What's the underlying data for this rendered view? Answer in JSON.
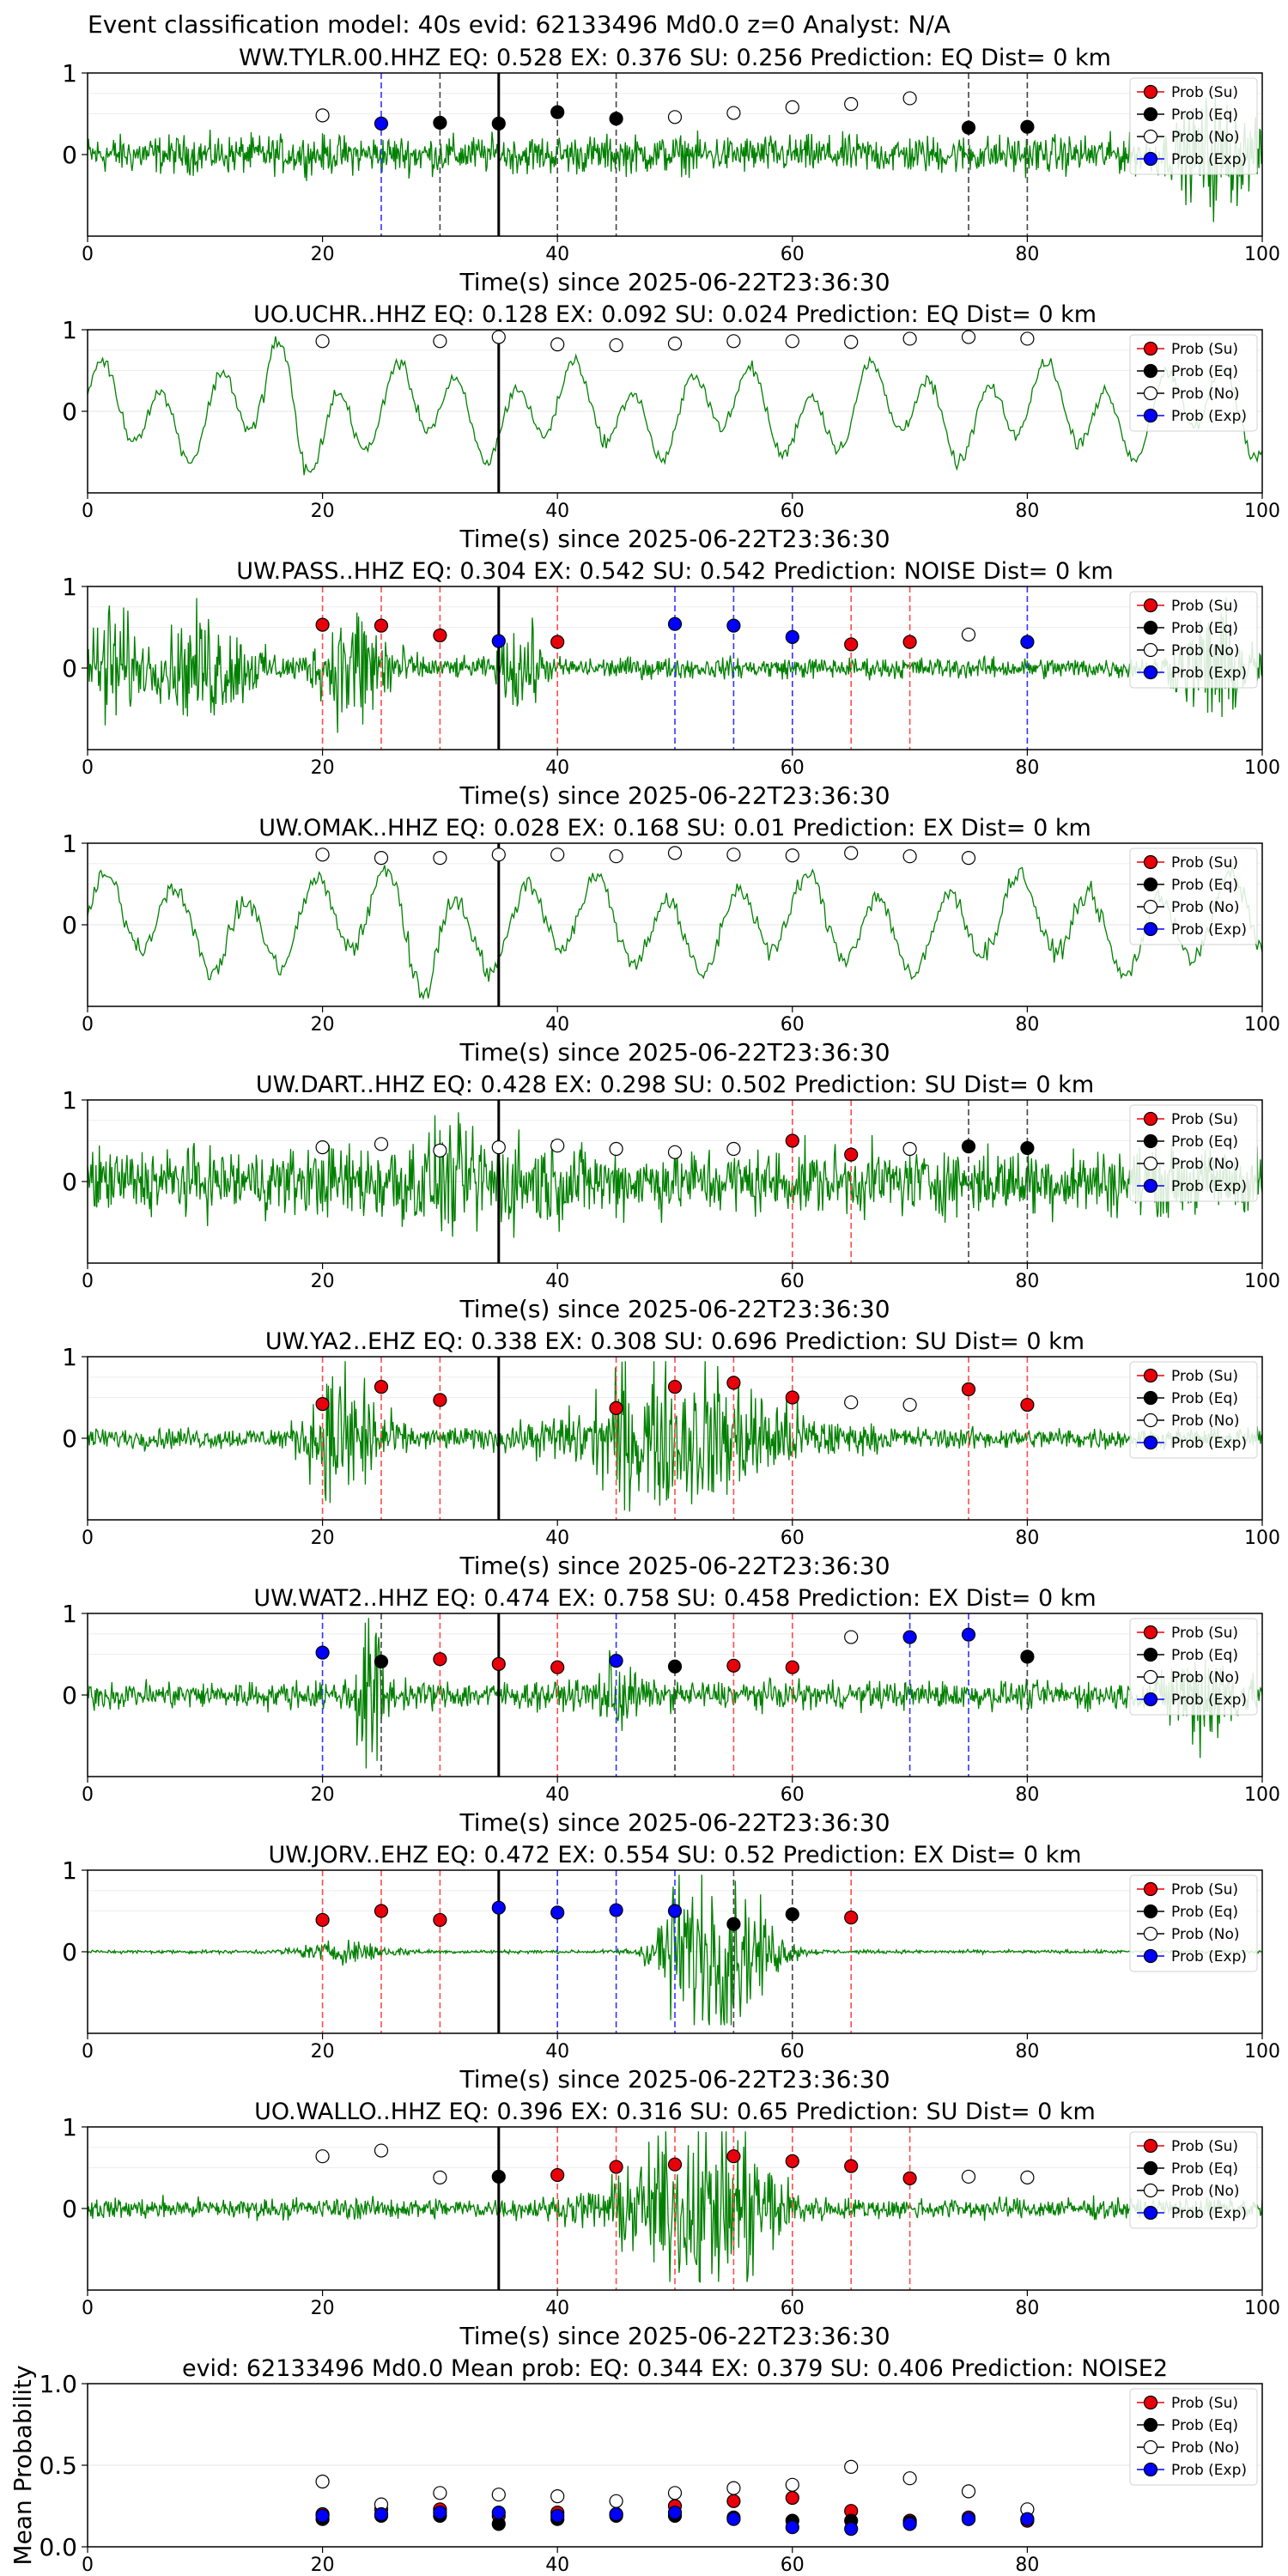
{
  "figure": {
    "suptitle": "Event classification model: 40s evid: 62133496 Md0.0 z=0 Analyst: N/A",
    "x_axis_label": "Time(s) since 2025-06-22T23:36:30",
    "y_axis_label_mean": "Mean Probability",
    "legend_labels": [
      "Prob (Su)",
      "Prob (Eq)",
      "Prob (No)",
      "Prob (Exp)"
    ],
    "colors": {
      "su": "#e8000b",
      "eq": "#000000",
      "no": "#ffffff",
      "exp": "#0000ff",
      "trace": "#008000",
      "su_line": "#ff4d4d",
      "eq_line": "#444444",
      "exp_line": "#3333ff"
    }
  },
  "chart_data": [
    {
      "type": "scatter",
      "title": "WW.TYLR.00.HHZ   EQ: 0.528  EX: 0.376  SU: 0.256   Prediction: EQ    Dist= 0 km",
      "xlim": [
        0,
        100
      ],
      "ylim": [
        -1,
        1
      ],
      "x_ticks": [
        0,
        20,
        40,
        60,
        80,
        100
      ],
      "y_ticks": [
        0,
        1
      ],
      "waveform": "noise",
      "origin_line": 35,
      "points": [
        {
          "x": 20,
          "cls": "no",
          "y": 0.48
        },
        {
          "x": 25,
          "cls": "exp",
          "y": 0.38
        },
        {
          "x": 30,
          "cls": "eq",
          "y": 0.39
        },
        {
          "x": 35,
          "cls": "eq",
          "y": 0.38
        },
        {
          "x": 40,
          "cls": "eq",
          "y": 0.52
        },
        {
          "x": 45,
          "cls": "eq",
          "y": 0.44
        },
        {
          "x": 50,
          "cls": "no",
          "y": 0.46
        },
        {
          "x": 55,
          "cls": "no",
          "y": 0.51
        },
        {
          "x": 60,
          "cls": "no",
          "y": 0.58
        },
        {
          "x": 65,
          "cls": "no",
          "y": 0.62
        },
        {
          "x": 70,
          "cls": "no",
          "y": 0.69
        },
        {
          "x": 75,
          "cls": "eq",
          "y": 0.33
        },
        {
          "x": 80,
          "cls": "eq",
          "y": 0.34
        }
      ]
    },
    {
      "type": "scatter",
      "title": "UO.UCHR..HHZ   EQ: 0.128  EX: 0.092  SU: 0.024   Prediction: EQ    Dist= 0 km",
      "xlim": [
        0,
        100
      ],
      "ylim": [
        -1,
        1
      ],
      "x_ticks": [
        0,
        20,
        40,
        60,
        80,
        100
      ],
      "y_ticks": [
        0,
        1
      ],
      "waveform": "smooth",
      "origin_line": 35,
      "points": [
        {
          "x": 20,
          "cls": "no",
          "y": 0.86
        },
        {
          "x": 30,
          "cls": "no",
          "y": 0.86
        },
        {
          "x": 35,
          "cls": "no",
          "y": 0.91
        },
        {
          "x": 40,
          "cls": "no",
          "y": 0.82
        },
        {
          "x": 45,
          "cls": "no",
          "y": 0.81
        },
        {
          "x": 50,
          "cls": "no",
          "y": 0.83
        },
        {
          "x": 55,
          "cls": "no",
          "y": 0.86
        },
        {
          "x": 60,
          "cls": "no",
          "y": 0.86
        },
        {
          "x": 65,
          "cls": "no",
          "y": 0.85
        },
        {
          "x": 70,
          "cls": "no",
          "y": 0.89
        },
        {
          "x": 75,
          "cls": "no",
          "y": 0.91
        },
        {
          "x": 80,
          "cls": "no",
          "y": 0.89
        }
      ]
    },
    {
      "type": "scatter",
      "title": "UW.PASS..HHZ   EQ: 0.304  EX: 0.542  SU: 0.542   Prediction: NOISE    Dist= 0 km",
      "xlim": [
        0,
        100
      ],
      "ylim": [
        -1,
        1
      ],
      "x_ticks": [
        0,
        20,
        40,
        60,
        80,
        100
      ],
      "y_ticks": [
        0,
        1
      ],
      "waveform": "bursty",
      "origin_line": 35,
      "points": [
        {
          "x": 20,
          "cls": "su",
          "y": 0.53
        },
        {
          "x": 25,
          "cls": "su",
          "y": 0.52
        },
        {
          "x": 30,
          "cls": "su",
          "y": 0.4
        },
        {
          "x": 35,
          "cls": "exp",
          "y": 0.33
        },
        {
          "x": 40,
          "cls": "su",
          "y": 0.32
        },
        {
          "x": 50,
          "cls": "exp",
          "y": 0.54
        },
        {
          "x": 55,
          "cls": "exp",
          "y": 0.52
        },
        {
          "x": 60,
          "cls": "exp",
          "y": 0.38
        },
        {
          "x": 65,
          "cls": "su",
          "y": 0.29
        },
        {
          "x": 70,
          "cls": "su",
          "y": 0.32
        },
        {
          "x": 75,
          "cls": "no",
          "y": 0.41
        },
        {
          "x": 80,
          "cls": "exp",
          "y": 0.32
        }
      ]
    },
    {
      "type": "scatter",
      "title": "UW.OMAK..HHZ   EQ: 0.028  EX: 0.168  SU: 0.01   Prediction: EX    Dist= 0 km",
      "xlim": [
        0,
        100
      ],
      "ylim": [
        -1,
        1
      ],
      "x_ticks": [
        0,
        20,
        40,
        60,
        80,
        100
      ],
      "y_ticks": [
        0,
        1
      ],
      "waveform": "smooth2",
      "origin_line": 35,
      "points": [
        {
          "x": 20,
          "cls": "no",
          "y": 0.86
        },
        {
          "x": 25,
          "cls": "no",
          "y": 0.82
        },
        {
          "x": 30,
          "cls": "no",
          "y": 0.82
        },
        {
          "x": 35,
          "cls": "no",
          "y": 0.86
        },
        {
          "x": 40,
          "cls": "no",
          "y": 0.86
        },
        {
          "x": 45,
          "cls": "no",
          "y": 0.84
        },
        {
          "x": 50,
          "cls": "no",
          "y": 0.88
        },
        {
          "x": 55,
          "cls": "no",
          "y": 0.86
        },
        {
          "x": 60,
          "cls": "no",
          "y": 0.85
        },
        {
          "x": 65,
          "cls": "no",
          "y": 0.88
        },
        {
          "x": 70,
          "cls": "no",
          "y": 0.84
        },
        {
          "x": 75,
          "cls": "no",
          "y": 0.82
        }
      ]
    },
    {
      "type": "scatter",
      "title": "UW.DART..HHZ   EQ: 0.428  EX: 0.298  SU: 0.502   Prediction: SU    Dist= 0 km",
      "xlim": [
        0,
        100
      ],
      "ylim": [
        -1,
        1
      ],
      "x_ticks": [
        0,
        20,
        40,
        60,
        80,
        100
      ],
      "y_ticks": [
        0,
        1
      ],
      "waveform": "noisy",
      "origin_line": 35,
      "points": [
        {
          "x": 20,
          "cls": "no",
          "y": 0.42
        },
        {
          "x": 25,
          "cls": "no",
          "y": 0.46
        },
        {
          "x": 30,
          "cls": "no",
          "y": 0.38
        },
        {
          "x": 35,
          "cls": "no",
          "y": 0.42
        },
        {
          "x": 40,
          "cls": "no",
          "y": 0.44
        },
        {
          "x": 45,
          "cls": "no",
          "y": 0.4
        },
        {
          "x": 50,
          "cls": "no",
          "y": 0.36
        },
        {
          "x": 55,
          "cls": "no",
          "y": 0.4
        },
        {
          "x": 60,
          "cls": "su",
          "y": 0.5
        },
        {
          "x": 65,
          "cls": "su",
          "y": 0.33
        },
        {
          "x": 70,
          "cls": "no",
          "y": 0.4
        },
        {
          "x": 75,
          "cls": "eq",
          "y": 0.43
        },
        {
          "x": 80,
          "cls": "eq",
          "y": 0.41
        }
      ]
    },
    {
      "type": "scatter",
      "title": "UW.YA2..EHZ   EQ: 0.338  EX: 0.308  SU: 0.696   Prediction: SU    Dist= 0 km",
      "xlim": [
        0,
        100
      ],
      "ylim": [
        -1,
        1
      ],
      "x_ticks": [
        0,
        20,
        40,
        60,
        80,
        100
      ],
      "y_ticks": [
        0,
        1
      ],
      "waveform": "twobursts",
      "origin_line": 35,
      "points": [
        {
          "x": 20,
          "cls": "su",
          "y": 0.42
        },
        {
          "x": 25,
          "cls": "su",
          "y": 0.63
        },
        {
          "x": 30,
          "cls": "su",
          "y": 0.47
        },
        {
          "x": 45,
          "cls": "su",
          "y": 0.37
        },
        {
          "x": 50,
          "cls": "su",
          "y": 0.63
        },
        {
          "x": 55,
          "cls": "su",
          "y": 0.68
        },
        {
          "x": 60,
          "cls": "su",
          "y": 0.5
        },
        {
          "x": 65,
          "cls": "no",
          "y": 0.44
        },
        {
          "x": 70,
          "cls": "no",
          "y": 0.41
        },
        {
          "x": 75,
          "cls": "su",
          "y": 0.6
        },
        {
          "x": 80,
          "cls": "su",
          "y": 0.41
        }
      ]
    },
    {
      "type": "scatter",
      "title": "UW.WAT2..HHZ   EQ: 0.474  EX: 0.758  SU: 0.458   Prediction: EX    Dist= 0 km",
      "xlim": [
        0,
        100
      ],
      "ylim": [
        -1,
        1
      ],
      "x_ticks": [
        0,
        20,
        40,
        60,
        80,
        100
      ],
      "y_ticks": [
        0,
        1
      ],
      "waveform": "spiky",
      "origin_line": 35,
      "points": [
        {
          "x": 20,
          "cls": "exp",
          "y": 0.52
        },
        {
          "x": 25,
          "cls": "eq",
          "y": 0.41
        },
        {
          "x": 30,
          "cls": "su",
          "y": 0.44
        },
        {
          "x": 35,
          "cls": "su",
          "y": 0.38
        },
        {
          "x": 40,
          "cls": "su",
          "y": 0.34
        },
        {
          "x": 45,
          "cls": "exp",
          "y": 0.42
        },
        {
          "x": 50,
          "cls": "eq",
          "y": 0.35
        },
        {
          "x": 55,
          "cls": "su",
          "y": 0.36
        },
        {
          "x": 60,
          "cls": "su",
          "y": 0.34
        },
        {
          "x": 65,
          "cls": "no",
          "y": 0.71
        },
        {
          "x": 70,
          "cls": "exp",
          "y": 0.71
        },
        {
          "x": 75,
          "cls": "exp",
          "y": 0.74
        },
        {
          "x": 80,
          "cls": "eq",
          "y": 0.47
        }
      ]
    },
    {
      "type": "scatter",
      "title": "UW.JORV..EHZ   EQ: 0.472  EX: 0.554  SU: 0.52   Prediction: EX    Dist= 0 km",
      "xlim": [
        0,
        100
      ],
      "ylim": [
        -1,
        1
      ],
      "x_ticks": [
        0,
        20,
        40,
        60,
        80,
        100
      ],
      "y_ticks": [
        0,
        1
      ],
      "waveform": "quiet",
      "origin_line": 35,
      "points": [
        {
          "x": 20,
          "cls": "su",
          "y": 0.39
        },
        {
          "x": 25,
          "cls": "su",
          "y": 0.5
        },
        {
          "x": 30,
          "cls": "su",
          "y": 0.39
        },
        {
          "x": 35,
          "cls": "exp",
          "y": 0.54
        },
        {
          "x": 40,
          "cls": "exp",
          "y": 0.48
        },
        {
          "x": 45,
          "cls": "exp",
          "y": 0.51
        },
        {
          "x": 50,
          "cls": "exp",
          "y": 0.5
        },
        {
          "x": 55,
          "cls": "eq",
          "y": 0.34
        },
        {
          "x": 60,
          "cls": "eq",
          "y": 0.46
        },
        {
          "x": 65,
          "cls": "su",
          "y": 0.42
        }
      ]
    },
    {
      "type": "scatter",
      "title": "UO.WALLO..HHZ   EQ: 0.396  EX: 0.316  SU: 0.65   Prediction: SU    Dist= 0 km",
      "xlim": [
        0,
        100
      ],
      "ylim": [
        -1,
        1
      ],
      "x_ticks": [
        0,
        20,
        40,
        60,
        80,
        100
      ],
      "y_ticks": [
        0,
        1
      ],
      "waveform": "growing",
      "origin_line": 35,
      "points": [
        {
          "x": 20,
          "cls": "no",
          "y": 0.64
        },
        {
          "x": 25,
          "cls": "no",
          "y": 0.71
        },
        {
          "x": 30,
          "cls": "no",
          "y": 0.38
        },
        {
          "x": 35,
          "cls": "eq",
          "y": 0.39
        },
        {
          "x": 40,
          "cls": "su",
          "y": 0.41
        },
        {
          "x": 45,
          "cls": "su",
          "y": 0.51
        },
        {
          "x": 50,
          "cls": "su",
          "y": 0.54
        },
        {
          "x": 55,
          "cls": "su",
          "y": 0.64
        },
        {
          "x": 60,
          "cls": "su",
          "y": 0.58
        },
        {
          "x": 65,
          "cls": "su",
          "y": 0.52
        },
        {
          "x": 70,
          "cls": "su",
          "y": 0.37
        },
        {
          "x": 75,
          "cls": "no",
          "y": 0.39
        },
        {
          "x": 80,
          "cls": "no",
          "y": 0.38
        }
      ]
    },
    {
      "type": "scatter",
      "title": "evid: 62133496  Md0.0   Mean prob:    EQ: 0.344  EX: 0.379  SU: 0.406   Prediction: NOISE2",
      "xlim": [
        0,
        100
      ],
      "ylim": [
        0,
        1
      ],
      "x_ticks": [
        0,
        20,
        40,
        60,
        80
      ],
      "y_ticks": [
        0.0,
        0.5,
        1.0
      ],
      "y_tick_labels": [
        "0.0",
        "0.5",
        "1.0"
      ],
      "ylabel": "Mean Probability",
      "series": [
        {
          "name": "Prob (Su)",
          "x": [
            20,
            25,
            30,
            35,
            40,
            45,
            50,
            55,
            60,
            65,
            70,
            75,
            80
          ],
          "values": [
            0.2,
            0.23,
            0.23,
            0.19,
            0.21,
            0.2,
            0.25,
            0.28,
            0.3,
            0.22,
            0.16,
            0.18,
            0.16
          ]
        },
        {
          "name": "Prob (Eq)",
          "x": [
            20,
            25,
            30,
            35,
            40,
            45,
            50,
            55,
            60,
            65,
            70,
            75,
            80
          ],
          "values": [
            0.17,
            0.19,
            0.19,
            0.14,
            0.17,
            0.19,
            0.19,
            0.18,
            0.16,
            0.16,
            0.15,
            0.17,
            0.17
          ]
        },
        {
          "name": "Prob (No)",
          "x": [
            20,
            25,
            30,
            35,
            40,
            45,
            50,
            55,
            60,
            65,
            70,
            75,
            80
          ],
          "values": [
            0.4,
            0.26,
            0.33,
            0.32,
            0.31,
            0.28,
            0.33,
            0.36,
            0.38,
            0.49,
            0.42,
            0.34,
            0.23
          ]
        },
        {
          "name": "Prob (Exp)",
          "x": [
            20,
            25,
            30,
            35,
            40,
            45,
            50,
            55,
            60,
            65,
            70,
            75,
            80
          ],
          "values": [
            0.19,
            0.2,
            0.21,
            0.21,
            0.19,
            0.2,
            0.21,
            0.17,
            0.12,
            0.11,
            0.14,
            0.17,
            0.17
          ]
        }
      ]
    }
  ]
}
